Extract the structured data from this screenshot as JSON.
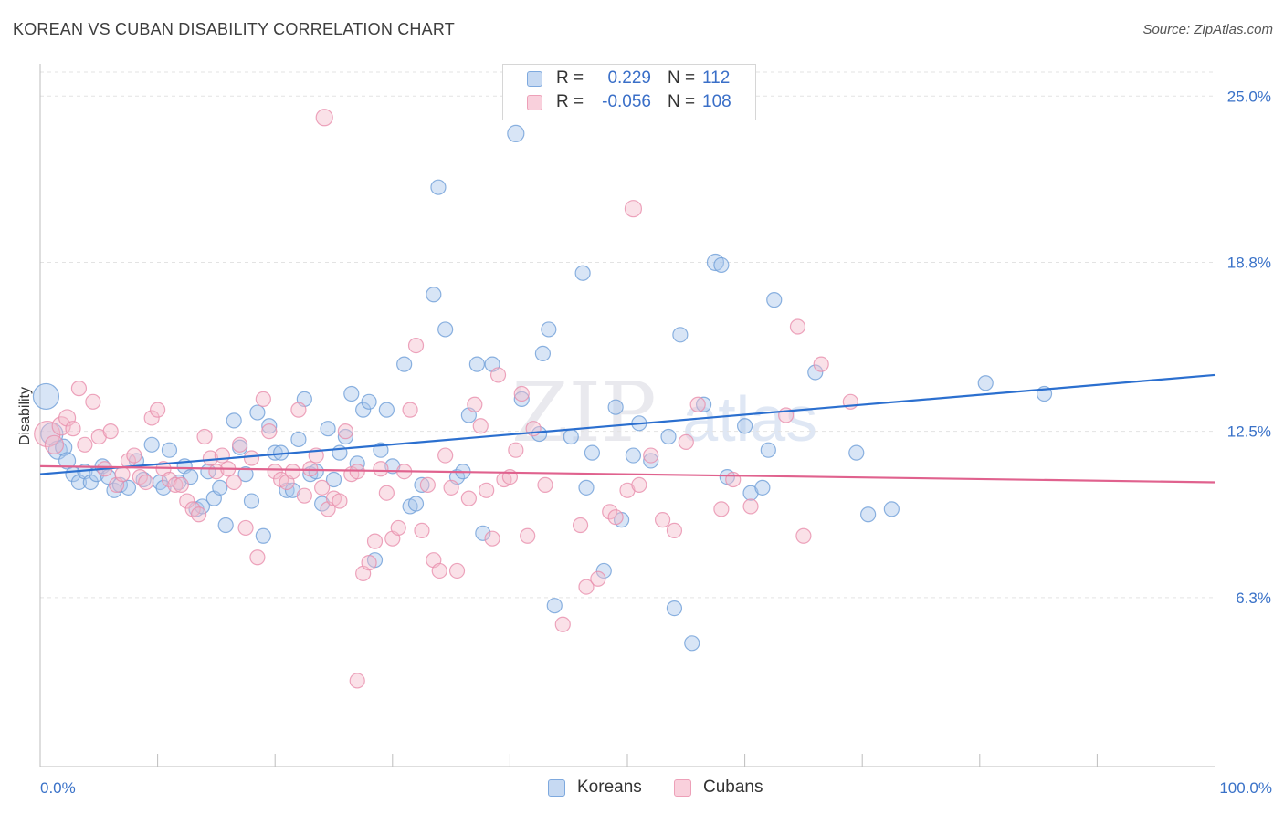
{
  "header": {
    "title": "KOREAN VS CUBAN DISABILITY CORRELATION CHART",
    "source": "Source: ZipAtlas.com"
  },
  "watermark": {
    "zip": "ZIP",
    "atlas": "atlas"
  },
  "legend_top": {
    "rows": [
      {
        "r_label": "R =",
        "r_value": "0.229",
        "n_label": "N =",
        "n_value": "112"
      },
      {
        "r_label": "R =",
        "r_value": "-0.056",
        "n_label": "N =",
        "n_value": "108"
      }
    ]
  },
  "legend_bottom": {
    "items": [
      "Koreans",
      "Cubans"
    ]
  },
  "colors": {
    "korean_fill": "#a9c6ec",
    "korean_stroke": "#6f9fd8",
    "korean_line": "#2b6fcf",
    "cuban_fill": "#f5bccd",
    "cuban_stroke": "#e98fac",
    "cuban_line": "#e0628e",
    "grid": "#e3e3e3",
    "tick_label": "#3a72c8"
  },
  "chart_data": {
    "type": "scatter",
    "title": "KOREAN VS CUBAN DISABILITY CORRELATION CHART",
    "xlabel": "",
    "ylabel": "Disability",
    "xlim": [
      0,
      100
    ],
    "ylim": [
      0,
      26.2
    ],
    "x_tick_labels": [
      "0.0%",
      "100.0%"
    ],
    "y_ticks": [
      6.3,
      12.5,
      18.8,
      25.0
    ],
    "y_tick_labels": [
      "6.3%",
      "12.5%",
      "18.8%",
      "25.0%"
    ],
    "grid": true,
    "legend_position": "top-center",
    "series": [
      {
        "name": "Koreans",
        "R": 0.229,
        "N": 112,
        "trend": {
          "x": [
            0,
            100
          ],
          "y": [
            10.9,
            14.6
          ]
        },
        "points": [
          [
            0.5,
            13.8,
            14
          ],
          [
            1.0,
            12.4,
            12
          ],
          [
            1.5,
            11.8,
            10
          ],
          [
            2.0,
            11.9,
            9
          ],
          [
            2.3,
            11.4,
            9
          ],
          [
            2.8,
            10.9,
            8
          ],
          [
            3.3,
            10.6,
            8
          ],
          [
            3.8,
            11.0,
            8
          ],
          [
            4.3,
            10.6,
            8
          ],
          [
            4.8,
            10.9,
            8
          ],
          [
            5.3,
            11.2,
            8
          ],
          [
            5.8,
            10.8,
            8
          ],
          [
            6.3,
            10.3,
            8
          ],
          [
            6.8,
            10.5,
            8
          ],
          [
            7.5,
            10.4,
            8
          ],
          [
            8.2,
            11.4,
            8
          ],
          [
            8.8,
            10.7,
            8
          ],
          [
            9.5,
            12.0,
            8
          ],
          [
            10.2,
            10.6,
            8
          ],
          [
            10.5,
            10.4,
            8
          ],
          [
            11.0,
            11.8,
            8
          ],
          [
            11.8,
            10.6,
            8
          ],
          [
            12.3,
            11.2,
            8
          ],
          [
            12.8,
            10.8,
            8
          ],
          [
            13.3,
            9.6,
            8
          ],
          [
            13.8,
            9.7,
            8
          ],
          [
            14.3,
            11.0,
            8
          ],
          [
            14.8,
            10.0,
            8
          ],
          [
            15.3,
            10.4,
            8
          ],
          [
            15.8,
            9.0,
            8
          ],
          [
            16.5,
            12.9,
            8
          ],
          [
            17.0,
            11.9,
            8
          ],
          [
            17.5,
            10.9,
            8
          ],
          [
            18.0,
            9.9,
            8
          ],
          [
            18.5,
            13.2,
            8
          ],
          [
            19.0,
            8.6,
            8
          ],
          [
            19.5,
            12.7,
            8
          ],
          [
            20.0,
            11.7,
            8
          ],
          [
            20.5,
            11.7,
            8
          ],
          [
            21.0,
            10.3,
            8
          ],
          [
            21.5,
            10.3,
            8
          ],
          [
            22.0,
            12.2,
            8
          ],
          [
            22.5,
            13.7,
            8
          ],
          [
            23.0,
            10.9,
            8
          ],
          [
            23.5,
            11.0,
            8
          ],
          [
            24.0,
            9.8,
            8
          ],
          [
            24.5,
            12.6,
            8
          ],
          [
            25.0,
            10.7,
            8
          ],
          [
            25.5,
            11.7,
            8
          ],
          [
            26.0,
            12.3,
            8
          ],
          [
            26.5,
            13.9,
            8
          ],
          [
            27.0,
            11.3,
            8
          ],
          [
            27.5,
            13.3,
            8
          ],
          [
            28.0,
            13.6,
            8
          ],
          [
            28.5,
            7.7,
            8
          ],
          [
            29.0,
            11.8,
            8
          ],
          [
            29.5,
            13.3,
            8
          ],
          [
            30.0,
            11.2,
            8
          ],
          [
            31.0,
            15.0,
            8
          ],
          [
            31.5,
            9.7,
            8
          ],
          [
            32.0,
            9.8,
            8
          ],
          [
            32.5,
            10.5,
            8
          ],
          [
            33.5,
            17.6,
            8
          ],
          [
            33.9,
            21.6,
            8
          ],
          [
            34.5,
            16.3,
            8
          ],
          [
            35.5,
            10.8,
            8
          ],
          [
            36.0,
            11.0,
            8
          ],
          [
            36.5,
            13.1,
            8
          ],
          [
            37.2,
            15.0,
            8
          ],
          [
            37.7,
            8.7,
            8
          ],
          [
            38.5,
            15.0,
            8
          ],
          [
            40.5,
            23.6,
            9
          ],
          [
            41.0,
            13.7,
            8
          ],
          [
            42.5,
            12.4,
            8
          ],
          [
            42.8,
            15.4,
            8
          ],
          [
            43.3,
            16.3,
            8
          ],
          [
            43.8,
            6.0,
            8
          ],
          [
            45.2,
            12.3,
            8
          ],
          [
            46.2,
            18.4,
            8
          ],
          [
            46.5,
            10.4,
            8
          ],
          [
            47.0,
            11.7,
            8
          ],
          [
            48.0,
            7.3,
            8
          ],
          [
            49.0,
            13.4,
            8
          ],
          [
            49.5,
            9.2,
            8
          ],
          [
            50.5,
            11.6,
            8
          ],
          [
            51.0,
            12.8,
            8
          ],
          [
            52.0,
            11.4,
            8
          ],
          [
            53.5,
            12.3,
            8
          ],
          [
            54.0,
            5.9,
            8
          ],
          [
            54.5,
            16.1,
            8
          ],
          [
            55.5,
            4.6,
            8
          ],
          [
            56.5,
            13.5,
            8
          ],
          [
            57.5,
            18.8,
            9
          ],
          [
            58.0,
            18.7,
            8
          ],
          [
            58.5,
            10.8,
            8
          ],
          [
            60.0,
            12.7,
            8
          ],
          [
            60.5,
            10.2,
            8
          ],
          [
            61.5,
            10.4,
            8
          ],
          [
            62.0,
            11.8,
            8
          ],
          [
            62.5,
            17.4,
            8
          ],
          [
            66.0,
            14.7,
            8
          ],
          [
            69.5,
            11.7,
            8
          ],
          [
            70.5,
            9.4,
            8
          ],
          [
            72.5,
            9.6,
            8
          ],
          [
            80.5,
            14.3,
            8
          ],
          [
            85.5,
            13.9,
            8
          ]
        ]
      },
      {
        "name": "Cubans",
        "R": -0.056,
        "N": 108,
        "trend": {
          "x": [
            0,
            100
          ],
          "y": [
            11.2,
            10.6
          ]
        },
        "points": [
          [
            0.6,
            12.4,
            14
          ],
          [
            1.2,
            12.0,
            10
          ],
          [
            1.8,
            12.7,
            10
          ],
          [
            2.3,
            13.0,
            9
          ],
          [
            2.8,
            12.6,
            8
          ],
          [
            3.3,
            14.1,
            8
          ],
          [
            3.8,
            12.0,
            8
          ],
          [
            4.5,
            13.6,
            8
          ],
          [
            5.0,
            12.3,
            8
          ],
          [
            5.5,
            11.1,
            8
          ],
          [
            6.0,
            12.5,
            8
          ],
          [
            6.5,
            10.5,
            8
          ],
          [
            7.0,
            10.9,
            8
          ],
          [
            7.5,
            11.4,
            8
          ],
          [
            8.0,
            11.6,
            8
          ],
          [
            8.5,
            10.8,
            8
          ],
          [
            9.0,
            10.6,
            8
          ],
          [
            9.5,
            13.0,
            8
          ],
          [
            10.0,
            13.3,
            8
          ],
          [
            10.5,
            11.1,
            8
          ],
          [
            11.0,
            10.7,
            8
          ],
          [
            11.5,
            10.5,
            8
          ],
          [
            12.0,
            10.5,
            8
          ],
          [
            12.5,
            9.9,
            8
          ],
          [
            13.0,
            9.6,
            8
          ],
          [
            13.5,
            9.4,
            8
          ],
          [
            14.0,
            12.3,
            8
          ],
          [
            14.5,
            11.5,
            8
          ],
          [
            15.0,
            11.0,
            8
          ],
          [
            15.5,
            11.6,
            8
          ],
          [
            16.0,
            11.1,
            8
          ],
          [
            16.5,
            10.6,
            8
          ],
          [
            17.0,
            12.0,
            8
          ],
          [
            17.5,
            8.9,
            8
          ],
          [
            18.0,
            11.5,
            8
          ],
          [
            18.5,
            7.8,
            8
          ],
          [
            19.0,
            13.7,
            8
          ],
          [
            19.5,
            12.5,
            8
          ],
          [
            20.0,
            11.0,
            8
          ],
          [
            20.5,
            10.7,
            8
          ],
          [
            21.0,
            10.6,
            8
          ],
          [
            21.5,
            11.0,
            8
          ],
          [
            22.0,
            13.3,
            8
          ],
          [
            22.5,
            10.1,
            8
          ],
          [
            23.0,
            11.1,
            8
          ],
          [
            23.5,
            11.6,
            8
          ],
          [
            24.0,
            10.4,
            8
          ],
          [
            24.5,
            9.6,
            8
          ],
          [
            25.0,
            10.0,
            8
          ],
          [
            25.5,
            9.9,
            8
          ],
          [
            26.0,
            12.5,
            8
          ],
          [
            26.5,
            10.9,
            8
          ],
          [
            27.0,
            11.0,
            8
          ],
          [
            27.5,
            7.2,
            8
          ],
          [
            28.0,
            7.6,
            8
          ],
          [
            28.5,
            8.4,
            8
          ],
          [
            29.0,
            11.1,
            8
          ],
          [
            29.5,
            10.2,
            8
          ],
          [
            30.0,
            8.5,
            8
          ],
          [
            30.5,
            8.9,
            8
          ],
          [
            31.0,
            11.0,
            8
          ],
          [
            31.5,
            13.3,
            8
          ],
          [
            32.0,
            15.7,
            8
          ],
          [
            32.5,
            8.8,
            8
          ],
          [
            33.0,
            10.5,
            8
          ],
          [
            33.5,
            7.7,
            8
          ],
          [
            34.0,
            7.3,
            8
          ],
          [
            34.5,
            11.6,
            8
          ],
          [
            35.0,
            10.4,
            8
          ],
          [
            35.5,
            7.3,
            8
          ],
          [
            36.5,
            10.0,
            8
          ],
          [
            37.0,
            13.5,
            8
          ],
          [
            37.5,
            12.7,
            8
          ],
          [
            38.0,
            10.3,
            8
          ],
          [
            38.5,
            8.5,
            8
          ],
          [
            39.0,
            14.6,
            8
          ],
          [
            39.5,
            10.7,
            8
          ],
          [
            40.0,
            10.8,
            8
          ],
          [
            40.5,
            11.8,
            8
          ],
          [
            41.0,
            13.9,
            8
          ],
          [
            27.0,
            3.2,
            8
          ],
          [
            24.2,
            24.2,
            9
          ],
          [
            50.5,
            20.8,
            9
          ],
          [
            41.5,
            8.6,
            8
          ],
          [
            42.0,
            12.6,
            8
          ],
          [
            43.0,
            10.5,
            8
          ],
          [
            44.5,
            5.3,
            8
          ],
          [
            46.0,
            9.0,
            8
          ],
          [
            46.5,
            6.7,
            8
          ],
          [
            47.5,
            7.0,
            8
          ],
          [
            48.5,
            9.5,
            8
          ],
          [
            49.0,
            9.3,
            8
          ],
          [
            50.0,
            10.3,
            8
          ],
          [
            51.0,
            10.5,
            8
          ],
          [
            52.0,
            11.6,
            8
          ],
          [
            53.0,
            9.2,
            8
          ],
          [
            54.0,
            8.8,
            8
          ],
          [
            55.0,
            12.1,
            8
          ],
          [
            56.0,
            13.5,
            8
          ],
          [
            58.0,
            9.6,
            8
          ],
          [
            59.0,
            10.7,
            8
          ],
          [
            60.5,
            9.7,
            8
          ],
          [
            63.5,
            13.1,
            8
          ],
          [
            64.5,
            16.4,
            8
          ],
          [
            65.0,
            8.6,
            8
          ],
          [
            66.5,
            15.0,
            8
          ],
          [
            69.0,
            13.6,
            8
          ]
        ]
      }
    ]
  }
}
